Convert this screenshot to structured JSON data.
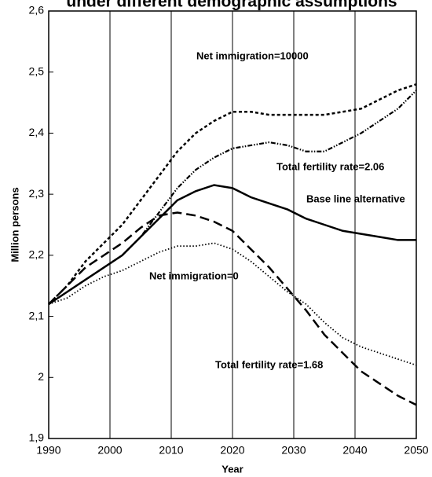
{
  "chart_data": {
    "type": "line",
    "title": "under different demographic assumptions",
    "x_label": "Year",
    "y_label": "Million persons",
    "x": [
      1990,
      1993,
      1996,
      1999,
      2002,
      2005,
      2008,
      2011,
      2014,
      2017,
      2020,
      2023,
      2026,
      2029,
      2032,
      2035,
      2038,
      2041,
      2044,
      2047,
      2050
    ],
    "series": [
      {
        "name": "Net immigration=10000",
        "color": "#000000",
        "style": "short-dash",
        "values": [
          2.12,
          2.15,
          2.19,
          2.22,
          2.25,
          2.29,
          2.33,
          2.37,
          2.4,
          2.42,
          2.435,
          2.435,
          2.43,
          2.43,
          2.43,
          2.43,
          2.435,
          2.44,
          2.455,
          2.47,
          2.48
        ]
      },
      {
        "name": "Total fertility rate=2.06",
        "color": "#000000",
        "style": "dash-dot",
        "values": [
          2.12,
          2.14,
          2.16,
          2.18,
          2.2,
          2.23,
          2.27,
          2.31,
          2.34,
          2.36,
          2.375,
          2.38,
          2.385,
          2.38,
          2.37,
          2.37,
          2.385,
          2.4,
          2.42,
          2.44,
          2.47
        ]
      },
      {
        "name": "Base line alternative",
        "color": "#000000",
        "style": "solid",
        "values": [
          2.12,
          2.14,
          2.16,
          2.18,
          2.2,
          2.23,
          2.26,
          2.29,
          2.305,
          2.315,
          2.31,
          2.295,
          2.285,
          2.275,
          2.26,
          2.25,
          2.24,
          2.235,
          2.23,
          2.225,
          2.225
        ]
      },
      {
        "name": "Total fertility rate=1.68",
        "color": "#000000",
        "style": "long-dash",
        "values": [
          2.12,
          2.15,
          2.18,
          2.2,
          2.22,
          2.245,
          2.265,
          2.27,
          2.265,
          2.255,
          2.24,
          2.21,
          2.18,
          2.145,
          2.11,
          2.07,
          2.04,
          2.01,
          1.99,
          1.97,
          1.955
        ]
      },
      {
        "name": "Net immigration=0",
        "color": "#000000",
        "style": "dotted",
        "values": [
          2.12,
          2.13,
          2.15,
          2.165,
          2.175,
          2.19,
          2.205,
          2.215,
          2.215,
          2.22,
          2.21,
          2.19,
          2.165,
          2.14,
          2.12,
          2.09,
          2.065,
          2.05,
          2.04,
          2.03,
          2.02
        ]
      }
    ],
    "xlim": [
      1990,
      2050
    ],
    "xticks": [
      1990,
      2000,
      2010,
      2020,
      2030,
      2040,
      2050
    ],
    "ylim": [
      1.9,
      2.6
    ],
    "yticks": [
      {
        "value": 1.9,
        "label": "1,9"
      },
      2,
      {
        "value": 2.1,
        "label": "2,1"
      },
      {
        "value": 2.2,
        "label": "2,2"
      },
      {
        "value": 2.3,
        "label": "2,3"
      },
      {
        "value": 2.4,
        "label": "2,4"
      },
      {
        "value": 2.5,
        "label": "2,5"
      },
      {
        "value": 2.6,
        "label": "2,6"
      }
    ],
    "grid": "x"
  }
}
